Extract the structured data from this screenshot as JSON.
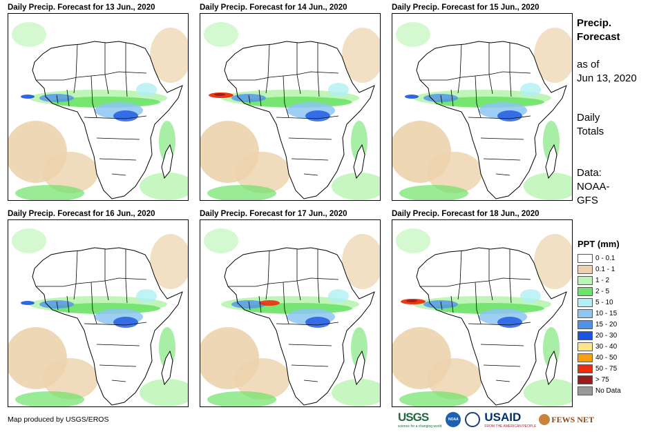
{
  "panels": [
    {
      "title": "Daily Precip. Forecast for 13 Jun., 2020"
    },
    {
      "title": "Daily Precip. Forecast for 14 Jun., 2020"
    },
    {
      "title": "Daily Precip. Forecast for 15 Jun., 2020"
    },
    {
      "title": "Daily Precip. Forecast for 16 Jun., 2020"
    },
    {
      "title": "Daily Precip. Forecast for 17 Jun., 2020"
    },
    {
      "title": "Daily Precip. Forecast for 18 Jun., 2020"
    }
  ],
  "sidebar": {
    "title_line1": "Precip.",
    "title_line2": "Forecast",
    "asof_line1": "as of",
    "asof_line2": "Jun 13, 2020",
    "totals_line1": "Daily",
    "totals_line2": "Totals",
    "data_line1": "Data:",
    "data_line2": "NOAA-",
    "data_line3": "GFS"
  },
  "legend": {
    "title": "PPT (mm)",
    "items": [
      {
        "label": "0 - 0.1",
        "color": "#ffffff"
      },
      {
        "label": "0.1 - 1",
        "color": "#ecd3ad"
      },
      {
        "label": "1 - 2",
        "color": "#b8f5b0"
      },
      {
        "label": "2 - 5",
        "color": "#6ee36a"
      },
      {
        "label": "5 - 10",
        "color": "#b0f0f4"
      },
      {
        "label": "10 - 15",
        "color": "#8ec6f2"
      },
      {
        "label": "15 - 20",
        "color": "#4f92ea"
      },
      {
        "label": "20 - 30",
        "color": "#1a55e0"
      },
      {
        "label": "30 - 40",
        "color": "#fde68a"
      },
      {
        "label": "40 - 50",
        "color": "#f8a10c"
      },
      {
        "label": "50 - 75",
        "color": "#ec2d0a"
      },
      {
        "label": "> 75",
        "color": "#9b1c1c"
      },
      {
        "label": "No Data",
        "color": "#999999"
      }
    ]
  },
  "credit": "Map produced by USGS/EROS",
  "logos": {
    "usgs": "USGS",
    "usgs_tagline": "science for a changing world",
    "noaa": "NOAA",
    "usaid": "USAID",
    "usaid_tagline": "FROM THE AMERICAN PEOPLE",
    "fews": "FEWS NET"
  }
}
